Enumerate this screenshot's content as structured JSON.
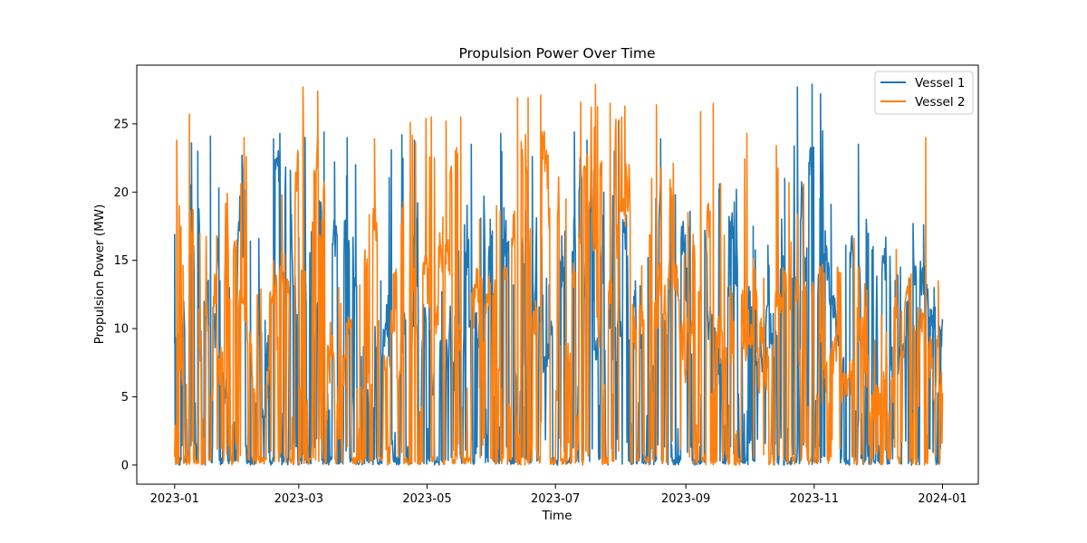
{
  "chart_data": {
    "type": "line",
    "title": "Propulsion Power Over Time",
    "xlabel": "Time",
    "ylabel": "Propulsion Power (MW)",
    "xlim": [
      "2022-12-14",
      "2024-01-18"
    ],
    "ylim": [
      -1.4,
      29.3
    ],
    "x_ticks": [
      {
        "date": "2023-01-01",
        "label": "2023-01"
      },
      {
        "date": "2023-03-01",
        "label": "2023-03"
      },
      {
        "date": "2023-05-01",
        "label": "2023-05"
      },
      {
        "date": "2023-07-01",
        "label": "2023-07"
      },
      {
        "date": "2023-09-01",
        "label": "2023-09"
      },
      {
        "date": "2023-11-01",
        "label": "2023-11"
      },
      {
        "date": "2024-01-01",
        "label": "2024-01"
      }
    ],
    "y_ticks": [
      0,
      5,
      10,
      15,
      20,
      25
    ],
    "grid": false,
    "legend_position": "top-right",
    "x_start": "2023-01-01",
    "x_end": "2024-01-01",
    "sampling": "hourly (approximate, dense signal)",
    "series": [
      {
        "name": "Vessel 1",
        "color": "#1f77b4",
        "peaks": [
          [
            "2023-01-01",
            16.9
          ],
          [
            "2023-01-04",
            13.5
          ],
          [
            "2023-01-09",
            23.6
          ],
          [
            "2023-01-12",
            23.0
          ],
          [
            "2023-01-15",
            12.0
          ],
          [
            "2023-01-18",
            24.1
          ],
          [
            "2023-01-22",
            20.3
          ],
          [
            "2023-01-27",
            13.0
          ],
          [
            "2023-02-02",
            22.7
          ],
          [
            "2023-02-06",
            16.4
          ],
          [
            "2023-02-10",
            16.6
          ],
          [
            "2023-02-13",
            10.6
          ],
          [
            "2023-02-17",
            23.9
          ],
          [
            "2023-02-20",
            24.3
          ],
          [
            "2023-02-25",
            21.6
          ],
          [
            "2023-03-01",
            16.7
          ],
          [
            "2023-03-04",
            24.0
          ],
          [
            "2023-03-07",
            17.1
          ],
          [
            "2023-03-13",
            24.4
          ],
          [
            "2023-03-18",
            22.2
          ],
          [
            "2023-03-24",
            24.0
          ],
          [
            "2023-03-28",
            22.0
          ],
          [
            "2023-04-02",
            13.1
          ],
          [
            "2023-04-09",
            13.5
          ],
          [
            "2023-04-14",
            23.1
          ],
          [
            "2023-04-19",
            24.2
          ],
          [
            "2023-04-25",
            23.8
          ],
          [
            "2023-05-02",
            13.5
          ],
          [
            "2023-05-08",
            12.7
          ],
          [
            "2023-05-15",
            15.0
          ],
          [
            "2023-05-22",
            23.5
          ],
          [
            "2023-05-31",
            18.0
          ],
          [
            "2023-06-05",
            24.3
          ],
          [
            "2023-06-11",
            13.2
          ],
          [
            "2023-06-20",
            22.6
          ],
          [
            "2023-06-28",
            13.2
          ],
          [
            "2023-07-04",
            16.8
          ],
          [
            "2023-07-10",
            24.4
          ],
          [
            "2023-07-16",
            23.8
          ],
          [
            "2023-07-24",
            20.0
          ],
          [
            "2023-07-31",
            25.2
          ],
          [
            "2023-08-08",
            13.5
          ],
          [
            "2023-08-14",
            15.2
          ],
          [
            "2023-08-20",
            23.9
          ],
          [
            "2023-08-27",
            19.8
          ],
          [
            "2023-09-03",
            18.6
          ],
          [
            "2023-09-10",
            17.2
          ],
          [
            "2023-09-17",
            20.6
          ],
          [
            "2023-09-25",
            20.2
          ],
          [
            "2023-10-03",
            17.5
          ],
          [
            "2023-10-10",
            16.1
          ],
          [
            "2023-10-18",
            21.0
          ],
          [
            "2023-10-24",
            27.7
          ],
          [
            "2023-10-31",
            27.9
          ],
          [
            "2023-11-04",
            27.2
          ],
          [
            "2023-11-09",
            19.1
          ],
          [
            "2023-11-16",
            16.1
          ],
          [
            "2023-11-22",
            23.5
          ],
          [
            "2023-11-29",
            16.0
          ],
          [
            "2023-12-05",
            16.7
          ],
          [
            "2023-12-12",
            14.5
          ],
          [
            "2023-12-18",
            17.7
          ],
          [
            "2023-12-23",
            17.6
          ],
          [
            "2023-12-28",
            13.0
          ]
        ]
      },
      {
        "name": "Vessel 2",
        "color": "#ff7f0e",
        "peaks": [
          [
            "2023-01-02",
            23.8
          ],
          [
            "2023-01-05",
            14.6
          ],
          [
            "2023-01-08",
            25.7
          ],
          [
            "2023-01-13",
            17.0
          ],
          [
            "2023-01-21",
            16.8
          ],
          [
            "2023-01-26",
            19.9
          ],
          [
            "2023-02-03",
            24.0
          ],
          [
            "2023-02-11",
            12.9
          ],
          [
            "2023-02-21",
            19.8
          ],
          [
            "2023-03-03",
            27.7
          ],
          [
            "2023-03-10",
            27.4
          ],
          [
            "2023-03-20",
            13.0
          ],
          [
            "2023-03-30",
            13.2
          ],
          [
            "2023-04-06",
            23.9
          ],
          [
            "2023-04-15",
            14.0
          ],
          [
            "2023-04-23",
            25.1
          ],
          [
            "2023-05-03",
            25.5
          ],
          [
            "2023-05-10",
            25.2
          ],
          [
            "2023-05-17",
            25.5
          ],
          [
            "2023-05-26",
            18.0
          ],
          [
            "2023-06-03",
            19.0
          ],
          [
            "2023-06-13",
            26.9
          ],
          [
            "2023-06-18",
            26.9
          ],
          [
            "2023-06-24",
            27.1
          ],
          [
            "2023-07-06",
            19.5
          ],
          [
            "2023-07-13",
            26.6
          ],
          [
            "2023-07-20",
            27.9
          ],
          [
            "2023-07-27",
            26.5
          ],
          [
            "2023-08-03",
            26.3
          ],
          [
            "2023-08-11",
            14.6
          ],
          [
            "2023-08-18",
            26.4
          ],
          [
            "2023-08-26",
            22.1
          ],
          [
            "2023-09-02",
            18.5
          ],
          [
            "2023-09-08",
            25.9
          ],
          [
            "2023-09-14",
            26.5
          ],
          [
            "2023-09-22",
            13.1
          ],
          [
            "2023-09-30",
            24.3
          ],
          [
            "2023-10-08",
            13.7
          ],
          [
            "2023-10-14",
            23.4
          ],
          [
            "2023-10-20",
            20.7
          ],
          [
            "2023-10-27",
            20.6
          ],
          [
            "2023-11-05",
            14.7
          ],
          [
            "2023-11-12",
            14.5
          ],
          [
            "2023-11-20",
            16.6
          ],
          [
            "2023-11-26",
            12.8
          ],
          [
            "2023-12-03",
            11.0
          ],
          [
            "2023-12-10",
            15.8
          ],
          [
            "2023-12-17",
            14.0
          ],
          [
            "2023-12-24",
            24.0
          ],
          [
            "2023-12-30",
            13.5
          ]
        ]
      }
    ]
  }
}
